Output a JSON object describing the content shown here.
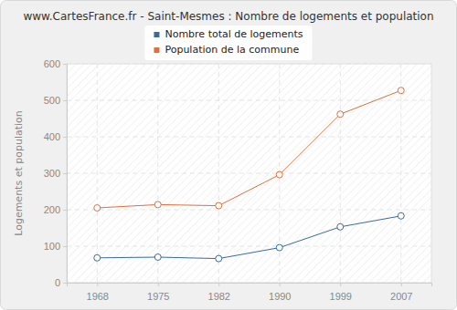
{
  "chart_data": {
    "type": "line",
    "title": "www.CartesFrance.fr - Saint-Mesmes : Nombre de logements et population",
    "y_label": "Logements et population",
    "categories": [
      "1968",
      "1975",
      "1982",
      "1990",
      "1999",
      "2007"
    ],
    "series": [
      {
        "name": "Nombre total de logements",
        "color": "#3a6b9c",
        "marker": "circle",
        "values": [
          68,
          70,
          66,
          96,
          153,
          183
        ]
      },
      {
        "name": "Population de la commune",
        "color": "#e0703c",
        "marker": "circle",
        "values": [
          205,
          214,
          211,
          296,
          462,
          527
        ]
      }
    ],
    "ylim": [
      0,
      600
    ],
    "yticks": [
      0,
      100,
      200,
      300,
      400,
      500,
      600
    ],
    "grid": true,
    "legend": "top"
  }
}
